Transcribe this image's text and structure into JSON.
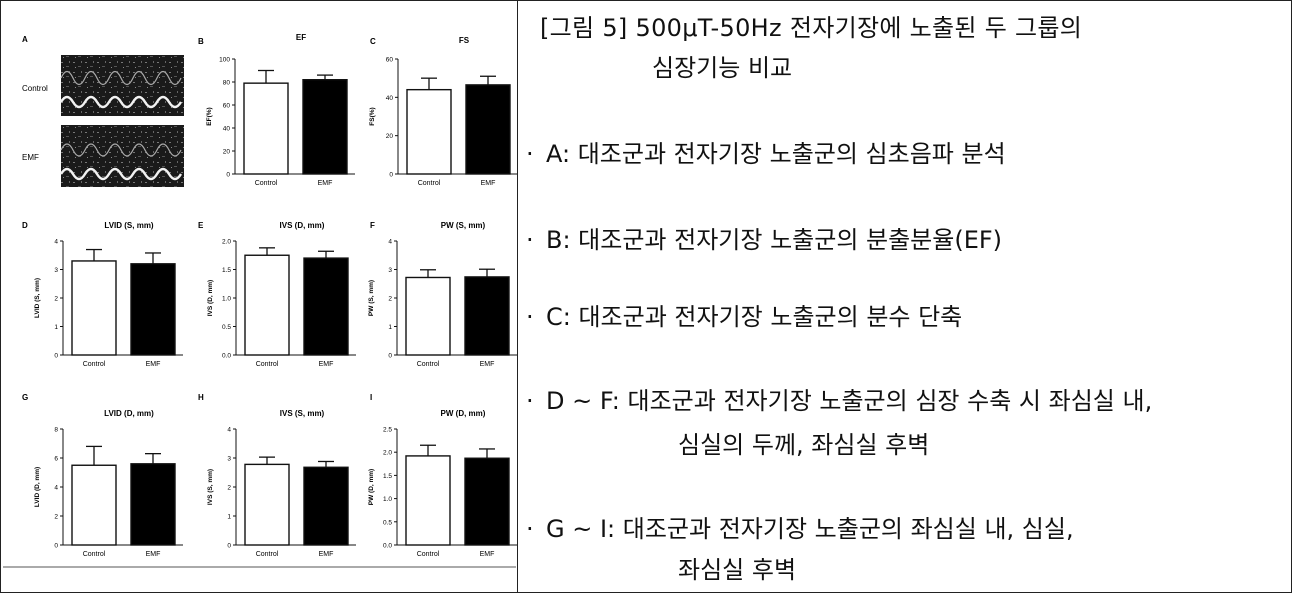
{
  "caption": {
    "title_line1": "[그림 5] 500μT-50Hz 전자기장에 노출된 두 그룹의",
    "title_line2": "심장기능 비교",
    "items": [
      {
        "bullet": "·",
        "text": "A:  대조군과 전자기장 노출군의 심초음파 분석"
      },
      {
        "bullet": "·",
        "text": "B:  대조군과 전자기장 노출군의 분출분율(EF)"
      },
      {
        "bullet": "·",
        "text": "C:  대조군과 전자기장 노출군의 분수 단축"
      },
      {
        "bullet": "·",
        "text": "D  ~  F:  대조군과 전자기장 노출군의 심장 수축 시 좌심실 내,",
        "cont": "심실의 두께, 좌심실 후벽"
      },
      {
        "bullet": "·",
        "text": "G  ~  I:  대조군과 전자기장 노출군의 좌심실 내,  심실,",
        "cont": "좌심실 후벽"
      }
    ]
  },
  "panel_a": {
    "letter": "A",
    "rows": [
      {
        "label": "Control"
      },
      {
        "label": "EMF"
      }
    ]
  },
  "chart_data": [
    {
      "panel": "B",
      "type": "bar",
      "title": "EF",
      "ylabel": "EF(%)",
      "categories": [
        "Control",
        "EMF"
      ],
      "values": [
        79,
        82
      ],
      "errors": [
        11,
        4
      ],
      "ylim": [
        0,
        100
      ],
      "yticks": [
        "0",
        "20",
        "40",
        "60",
        "80",
        "100"
      ]
    },
    {
      "panel": "C",
      "type": "bar",
      "title": "FS",
      "ylabel": "FS(%)",
      "categories": [
        "Control",
        "EMF"
      ],
      "values": [
        44,
        46.5
      ],
      "errors": [
        6,
        4.5
      ],
      "ylim": [
        0,
        60
      ],
      "yticks": [
        "0",
        "20",
        "40",
        "60"
      ]
    },
    {
      "panel": "D",
      "type": "bar",
      "title": "LVID (S, mm)",
      "ylabel": "LVID (S, mm)",
      "categories": [
        "Control",
        "EMF"
      ],
      "values": [
        3.3,
        3.2
      ],
      "errors": [
        0.4,
        0.38
      ],
      "ylim": [
        0,
        4
      ],
      "yticks": [
        "0",
        "1",
        "2",
        "3",
        "4"
      ]
    },
    {
      "panel": "E",
      "type": "bar",
      "title": "IVS (D, mm)",
      "ylabel": "IVS (D, mm)",
      "categories": [
        "Control",
        "EMF"
      ],
      "values": [
        1.75,
        1.7
      ],
      "errors": [
        0.13,
        0.12
      ],
      "ylim": [
        0,
        2.0
      ],
      "yticks": [
        "0.0",
        "0.5",
        "1.0",
        "1.5",
        "2.0"
      ]
    },
    {
      "panel": "F",
      "type": "bar",
      "title": "PW (S, mm)",
      "ylabel": "PW (S, mm)",
      "categories": [
        "Control",
        "EMF"
      ],
      "values": [
        2.72,
        2.74
      ],
      "errors": [
        0.27,
        0.27
      ],
      "ylim": [
        0,
        4
      ],
      "yticks": [
        "0",
        "1",
        "2",
        "3",
        "4"
      ]
    },
    {
      "panel": "G",
      "type": "bar",
      "title": "LVID (D, mm)",
      "ylabel": "LVID (D, mm)",
      "categories": [
        "Control",
        "EMF"
      ],
      "values": [
        5.5,
        5.6
      ],
      "errors": [
        1.3,
        0.7
      ],
      "ylim": [
        0,
        8
      ],
      "yticks": [
        "0",
        "2",
        "4",
        "6",
        "8"
      ]
    },
    {
      "panel": "H",
      "type": "bar",
      "title": "IVS (S, mm)",
      "ylabel": "IVS (S, mm)",
      "categories": [
        "Control",
        "EMF"
      ],
      "values": [
        2.78,
        2.68
      ],
      "errors": [
        0.25,
        0.2
      ],
      "ylim": [
        0,
        4
      ],
      "yticks": [
        "0",
        "1",
        "2",
        "3",
        "4"
      ]
    },
    {
      "panel": "I",
      "type": "bar",
      "title": "PW (D, mm)",
      "ylabel": "PW (D, mm)",
      "categories": [
        "Control",
        "EMF"
      ],
      "values": [
        1.92,
        1.87
      ],
      "errors": [
        0.23,
        0.2
      ],
      "ylim": [
        0,
        2.5
      ],
      "yticks": [
        "0.0",
        "0.5",
        "1.0",
        "1.5",
        "2.0",
        "2.5"
      ]
    }
  ],
  "colors": {
    "control_fill": "#ffffff",
    "emf_fill": "#000000",
    "axis": "#111111"
  }
}
